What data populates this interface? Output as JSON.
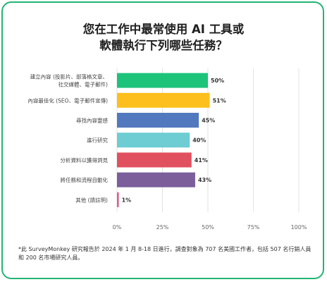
{
  "chart_data": {
    "type": "bar",
    "orientation": "horizontal",
    "title_lines": [
      "您在工作中最常使用 AI 工具或",
      "軟體執行下列哪些任務？"
    ],
    "categories": [
      [
        "建立內容 (投影片、部落格文章、",
        "社交媒體、電子郵件)"
      ],
      [
        "內容最佳化 (SEO、電子郵件宣傳)"
      ],
      [
        "尋找內容靈感"
      ],
      [
        "進行研究"
      ],
      [
        "分析資料以獲得洞見"
      ],
      [
        "將任務和流程自動化"
      ],
      [
        "其他 (請註明)"
      ]
    ],
    "values": [
      50,
      51,
      45,
      40,
      41,
      43,
      1
    ],
    "value_labels": [
      "50%",
      "51%",
      "45%",
      "40%",
      "41%",
      "43%",
      "1%"
    ],
    "bar_colors": [
      "#1ec37a",
      "#fcbf1d",
      "#5279be",
      "#6dcdd3",
      "#e1505e",
      "#7b5e9a",
      "#db5d8c"
    ],
    "x_ticks": [
      0,
      25,
      50,
      75,
      100
    ],
    "x_tick_labels": [
      "0%",
      "25%",
      "50%",
      "75%",
      "100%"
    ],
    "xlim": [
      0,
      100
    ],
    "grid": true
  },
  "footnote": "*此 SurveyMonkey 研究報告於 2024 年 1 月 8-18 日進行，調查對象為 707 名美國工作者，包括 507 名行銷人員和 200 名市場研究人員。"
}
